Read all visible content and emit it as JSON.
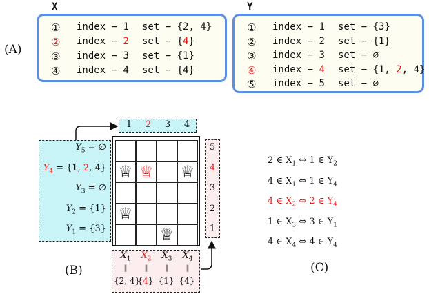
{
  "panel_a": {
    "label": "(A)",
    "x_box": {
      "title": "X",
      "rows": [
        {
          "num": "①",
          "idx_prefix": "index − ",
          "idx_val": "1",
          "set_prefix": "set − {",
          "set_parts": [
            "2, 4"
          ],
          "set_suffix": "}",
          "highlight": false
        },
        {
          "num": "②",
          "idx_prefix": "index − ",
          "idx_val": "2",
          "set_prefix": "set − {",
          "set_parts": [
            "4"
          ],
          "set_suffix": "}",
          "highlight": true
        },
        {
          "num": "③",
          "idx_prefix": "index − ",
          "idx_val": "3",
          "set_prefix": "set − {",
          "set_parts": [
            "1"
          ],
          "set_suffix": "}",
          "highlight": false
        },
        {
          "num": "④",
          "idx_prefix": "index − ",
          "idx_val": "4",
          "set_prefix": "set − {",
          "set_parts": [
            "4"
          ],
          "set_suffix": "}",
          "highlight": false
        }
      ]
    },
    "y_box": {
      "title": "Y",
      "rows": [
        {
          "num": "①",
          "idx_prefix": "index − ",
          "idx_val": "1",
          "set_text": "set − {3}",
          "highlight": false
        },
        {
          "num": "②",
          "idx_prefix": "index − ",
          "idx_val": "2",
          "set_text": "set − {1}",
          "highlight": false
        },
        {
          "num": "③",
          "idx_prefix": "index − ",
          "idx_val": "3",
          "set_text": "set − ∅",
          "highlight": false
        },
        {
          "num": "④",
          "idx_prefix": "index − ",
          "idx_val": "4",
          "set_a": "set − {1, ",
          "set_b": "2",
          "set_c": ", 4}",
          "highlight": true
        },
        {
          "num": "⑤",
          "idx_prefix": "index − ",
          "idx_val": "5",
          "set_text": "set − ∅",
          "highlight": false
        }
      ]
    }
  },
  "panel_b": {
    "label": "(B)",
    "top_nums": [
      "1",
      "2",
      "3",
      "4"
    ],
    "top_red_index": 1,
    "right_nums": [
      "5",
      "4",
      "3",
      "2",
      "1"
    ],
    "right_red_index": 1,
    "y_sets": [
      {
        "name": "Y",
        "sub": "5",
        "val": " = ∅",
        "red": false
      },
      {
        "name": "Y",
        "sub": "4",
        "val": " = {1, ",
        "val_red": "2",
        "val_end": ", 4}",
        "red": true
      },
      {
        "name": "Y",
        "sub": "3",
        "val": " = ∅",
        "red": false
      },
      {
        "name": "Y",
        "sub": "2",
        "val": " = {1}",
        "red": false
      },
      {
        "name": "Y",
        "sub": "1",
        "val": " = {3}",
        "red": false
      }
    ],
    "x_names": [
      {
        "name": "X",
        "sub": "1",
        "red": false
      },
      {
        "name": "X",
        "sub": "2",
        "red": true
      },
      {
        "name": "X",
        "sub": "3",
        "red": false
      },
      {
        "name": "X",
        "sub": "4",
        "red": false
      }
    ],
    "equals_glyph": "‖",
    "x_sets": [
      {
        "text": "{2, 4}",
        "red": false
      },
      {
        "pre": "{",
        "mid": "4",
        "post": "}",
        "red": true
      },
      {
        "text": "{1}",
        "red": false
      },
      {
        "text": "{4}",
        "red": false
      }
    ],
    "queen_glyph": "♕",
    "queens": [
      {
        "col": 0,
        "row": 1,
        "red": false
      },
      {
        "col": 1,
        "row": 1,
        "red": true
      },
      {
        "col": 3,
        "row": 1,
        "red": false
      },
      {
        "col": 0,
        "row": 3,
        "red": false
      },
      {
        "col": 2,
        "row": 4,
        "red": false
      }
    ]
  },
  "panel_c": {
    "label": "(C)",
    "equations": [
      {
        "a": "2 ∈ X",
        "as": "1",
        "b": " ⇔ 1 ∈ Y",
        "bs": "2",
        "red": false
      },
      {
        "a": "4 ∈ X",
        "as": "1",
        "b": " ⇔ 1 ∈ Y",
        "bs": "4",
        "red": false
      },
      {
        "a": "4 ∈ X",
        "as": "2",
        "b": " ⇔ 2 ∈ Y",
        "bs": "4",
        "red": true
      },
      {
        "a": "1 ∈ X",
        "as": "3",
        "b": " ⇔ 3 ∈ Y",
        "bs": "1",
        "red": false
      },
      {
        "a": "4 ∈ X",
        "as": "4",
        "b": " ⇔ 4 ∈ Y",
        "bs": "4",
        "red": false
      }
    ]
  }
}
